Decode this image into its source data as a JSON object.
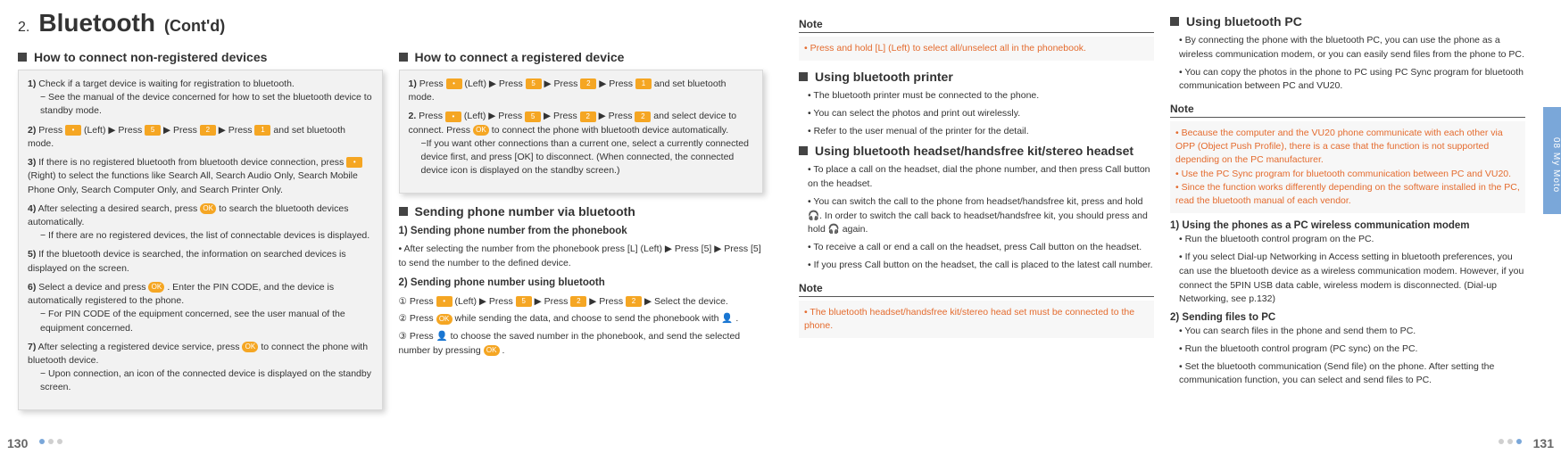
{
  "chapter": {
    "num": "2.",
    "title": "Bluetooth",
    "cont": "(Cont'd)"
  },
  "left": {
    "secA": "How to connect non-registered devices",
    "cardA": [
      {
        "n": "1)",
        "t": "Check if a target device is waiting for registration to bluetooth.",
        "sub": "− See the manual of the device concerned for how to set the bluetooth device to standby mode."
      },
      {
        "n": "2)",
        "t": "Press [L] (Left) ▶ Press [5] ▶ Press [2] ▶ Press [1] and set bluetooth mode."
      },
      {
        "n": "3)",
        "t": "If there is no registered bluetooth from bluetooth device connection, press [R] (Right) to select the functions like Search All, Search Audio Only, Search Mobile Phone Only, Search Computer Only, and Search Printer Only."
      },
      {
        "n": "4)",
        "t": "After selecting a desired search, press [OK] to search the bluetooth devices automatically.",
        "sub": "− If there are no registered devices, the list of connectable devices is displayed."
      },
      {
        "n": "5)",
        "t": "If the bluetooth device is searched, the information on searched devices is displayed on the screen."
      },
      {
        "n": "6)",
        "t": "Select a device and press [OK] . Enter the PIN CODE, and the device is automatically registered to the phone.",
        "sub": "− For PIN CODE of the equipment concerned, see the user manual of the equipment concerned."
      },
      {
        "n": "7)",
        "t": "After selecting a registered device service, press [OK] to connect the phone with bluetooth device.",
        "sub": "− Upon connection, an icon of the connected device is displayed on the standby screen."
      }
    ],
    "secB": "How to connect a registered device",
    "cardB": [
      {
        "n": "1)",
        "t": "Press [L] (Left) ▶ Press [5] ▶ Press [2] ▶ Press [1] and set bluetooth mode."
      },
      {
        "n": "2.",
        "t": "Press [L] (Left) ▶ Press [5] ▶ Press [2] ▶ Press [2] and select device to connect.  Press [OK] to connect the phone with bluetooth device automatically.",
        "sub": "−If you want other connections than a current one, select a currently connected device first, and press [OK] to disconnect. (When connected, the connected device icon is displayed on the standby screen.)"
      }
    ],
    "secC": "Sending phone number via bluetooth",
    "c1h": "1) Sending phone number from the phonebook",
    "c1b": "• After selecting the number from the phonebook press [L] (Left) ▶ Press [5] ▶ Press [5] to send the number to the defined device.",
    "c2h": "2) Sending phone number using bluetooth",
    "c2": [
      "① Press [L] (Left) ▶ Press [5] ▶ Press [2] ▶ Press [2] ▶ Select the device.",
      "② Press [OK] while sending the data, and choose to send the phonebook with 👤 .",
      "③ Press 👤 to choose the saved number in the phonebook, and send the selected number by pressing [OK] ."
    ],
    "pageNum": "130"
  },
  "right": {
    "noteA": "• Press and hold [L] (Left) to select all/unselect all in the phonebook.",
    "secPrinter": "Using bluetooth printer",
    "printer": [
      "The bluetooth printer must be connected to the phone.",
      "You can select the photos and print out wirelessly.",
      "Refer to the user menual of the printer for the detail."
    ],
    "secHeadset": "Using bluetooth headset/handsfree kit/stereo headset",
    "headset": [
      "To place a call on the headset, dial the phone number, and then press Call button on the headset.",
      "You can switch the call to the phone from headset/handsfree kit, press and hold 🎧. In order to switch the call back to headset/handsfree kit, you should press and hold 🎧 again.",
      "To receive a call or end a call on the headset, press Call button on the headset.",
      "If you press Call button on the headset, the call is placed to the latest call number."
    ],
    "noteB": "• The bluetooth headset/handsfree kit/stereo head set must be connected to the phone.",
    "secPC": "Using bluetooth PC",
    "pc": [
      "By connecting the phone with the bluetooth PC, you can use the phone as a wireless communication modem, or you can easily send files from the phone to PC.",
      "You can copy the photos in the phone to PC using PC Sync program for bluetooth communication between PC and VU20."
    ],
    "noteC": [
      "Because the computer and the VU20 phone communicate with each other via OPP (Object Push Profile), there is a case that the function is not supported depending on the PC manufacturer.",
      "Use the PC Sync program for bluetooth communication between PC and VU20.",
      "Since the function works differently depending on the software installed in the PC, read the bluetooth manual of each vendor."
    ],
    "d1h": "1) Using the phones as a PC wireless communication modem",
    "d1": [
      "Run the bluetooth control program on the PC.",
      "If you select Dial-up Networking in Access setting in bluetooth preferences, you can use the bluetooth device as a wireless communication modem. However, if you connect the 5PIN USB data cable, wireless modem is disconnected. (Dial-up Networking, see p.132)"
    ],
    "d2h": "2) Sending files to PC",
    "d2": [
      "You can search files in the phone and send them to PC.",
      "Run the bluetooth control program (PC sync) on the PC.",
      "Set the bluetooth communication (Send file) on the phone. After setting the communication function, you can select and send files to PC."
    ],
    "sideTab": "08  My Moto",
    "pageNum": "131"
  },
  "noteLabel": "Note",
  "style": {
    "page_bg": "#ffffff",
    "card_bg": "#f2f2f2",
    "card_border": "#d9d9d9",
    "note_color": "#e46b2e",
    "tab_bg": "#7aa7d9",
    "key_bg": "#f5a623",
    "body_font_pt": 10.5,
    "chapter_font_pt": 28,
    "sec_font_pt": 14,
    "subh_font_pt": 11.5
  }
}
